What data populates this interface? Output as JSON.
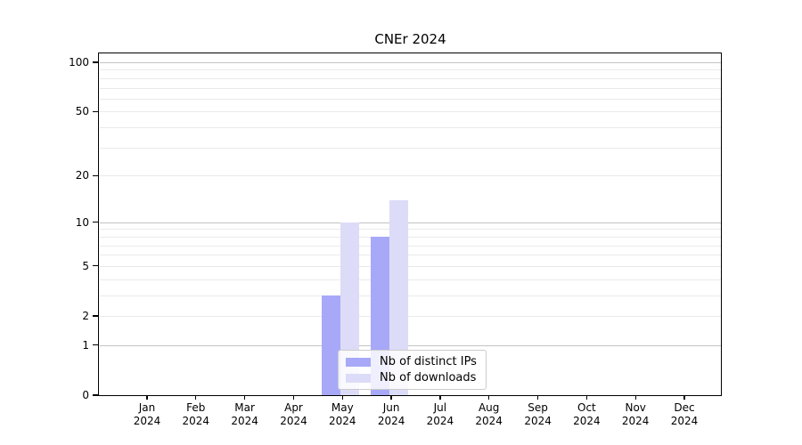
{
  "title": "CNEr 2024",
  "chart_data": {
    "type": "bar",
    "title": "CNEr 2024",
    "categories": [
      "Jan 2024",
      "Feb 2024",
      "Mar 2024",
      "Apr 2024",
      "May 2024",
      "Jun 2024",
      "Jul 2024",
      "Aug 2024",
      "Sep 2024",
      "Oct 2024",
      "Nov 2024",
      "Dec 2024"
    ],
    "series": [
      {
        "name": "Nb of distinct IPs",
        "color": "#a8a8f8",
        "values": [
          0,
          0,
          0,
          0,
          3,
          8,
          0,
          0,
          0,
          0,
          0,
          0
        ]
      },
      {
        "name": "Nb of downloads",
        "color": "#dcdcf8",
        "values": [
          0,
          0,
          0,
          0,
          10,
          14,
          0,
          0,
          0,
          0,
          0,
          0
        ]
      }
    ],
    "yscale": "log1p",
    "ylim": [
      0,
      113
    ],
    "y_ticks": [
      0,
      1,
      2,
      5,
      10,
      20,
      50,
      100
    ],
    "y_major_gridlines": [
      1,
      10,
      100
    ],
    "y_minor_gridlines": [
      2,
      3,
      4,
      5,
      6,
      7,
      8,
      9,
      20,
      30,
      40,
      50,
      60,
      70,
      80,
      90
    ],
    "grid": "horizontal",
    "legend": {
      "position": "inside-bottom-center",
      "items": [
        {
          "label": "Nb of distinct IPs",
          "color": "#a8a8f8"
        },
        {
          "label": "Nb of downloads",
          "color": "#dcdcf8"
        }
      ]
    },
    "axis_color": "#000000",
    "major_grid_color": "#c3c3c3",
    "minor_grid_color": "#eaeaea"
  }
}
